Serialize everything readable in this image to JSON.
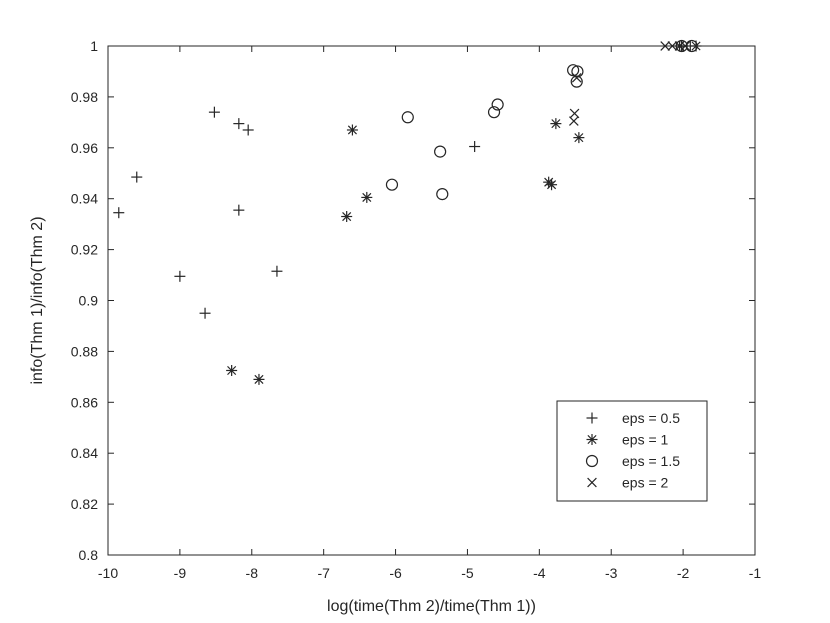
{
  "chart_data": {
    "type": "scatter",
    "title": "",
    "xlabel": "log(time(Thm 2)/time(Thm 1))",
    "ylabel": "info(Thm 1)/info(Thm 2)",
    "xlim": [
      -10,
      -1
    ],
    "ylim": [
      0.8,
      1.0
    ],
    "xticks": [
      -10,
      -9,
      -8,
      -7,
      -6,
      -5,
      -4,
      -3,
      -2,
      -1
    ],
    "yticks": [
      0.8,
      0.82,
      0.84,
      0.86,
      0.88,
      0.9,
      0.92,
      0.94,
      0.96,
      0.98,
      1.0
    ],
    "ytick_labels": [
      "0.8",
      "0.82",
      "0.84",
      "0.86",
      "0.88",
      "0.9",
      "0.92",
      "0.94",
      "0.96",
      "0.98",
      "1"
    ],
    "grid": false,
    "legend_position": "bottom-right",
    "series": [
      {
        "name": "eps = 0.5",
        "marker": "plus",
        "points": [
          [
            -9.85,
            0.9345
          ],
          [
            -9.6,
            0.9485
          ],
          [
            -9.0,
            0.9095
          ],
          [
            -8.65,
            0.895
          ],
          [
            -8.52,
            0.974
          ],
          [
            -8.18,
            0.9695
          ],
          [
            -8.05,
            0.967
          ],
          [
            -8.18,
            0.9355
          ],
          [
            -7.65,
            0.9115
          ],
          [
            -4.9,
            0.9605
          ],
          [
            -2.02,
            1.0
          ],
          [
            -1.9,
            1.0
          ]
        ]
      },
      {
        "name": "eps = 1",
        "marker": "star",
        "points": [
          [
            -8.28,
            0.8725
          ],
          [
            -7.9,
            0.869
          ],
          [
            -6.68,
            0.933
          ],
          [
            -6.6,
            0.967
          ],
          [
            -6.4,
            0.9405
          ],
          [
            -3.87,
            0.9465
          ],
          [
            -3.83,
            0.9455
          ],
          [
            -3.77,
            0.9695
          ],
          [
            -3.45,
            0.964
          ],
          [
            -2.05,
            1.0
          ],
          [
            -1.82,
            1.0
          ]
        ]
      },
      {
        "name": "eps = 1.5",
        "marker": "circle",
        "points": [
          [
            -6.05,
            0.9455
          ],
          [
            -5.83,
            0.972
          ],
          [
            -5.38,
            0.9585
          ],
          [
            -5.35,
            0.9418
          ],
          [
            -4.63,
            0.974
          ],
          [
            -4.58,
            0.977
          ],
          [
            -3.53,
            0.9905
          ],
          [
            -3.47,
            0.99
          ],
          [
            -3.48,
            0.986
          ],
          [
            -2.02,
            1.0
          ],
          [
            -1.88,
            1.0
          ]
        ]
      },
      {
        "name": "eps = 2",
        "marker": "cross",
        "points": [
          [
            -3.51,
            0.9735
          ],
          [
            -3.52,
            0.9705
          ],
          [
            -3.48,
            0.9875
          ],
          [
            -2.25,
            1.0
          ],
          [
            -2.15,
            1.0
          ],
          [
            -2.05,
            1.0
          ],
          [
            -1.97,
            1.0
          ]
        ]
      }
    ]
  }
}
